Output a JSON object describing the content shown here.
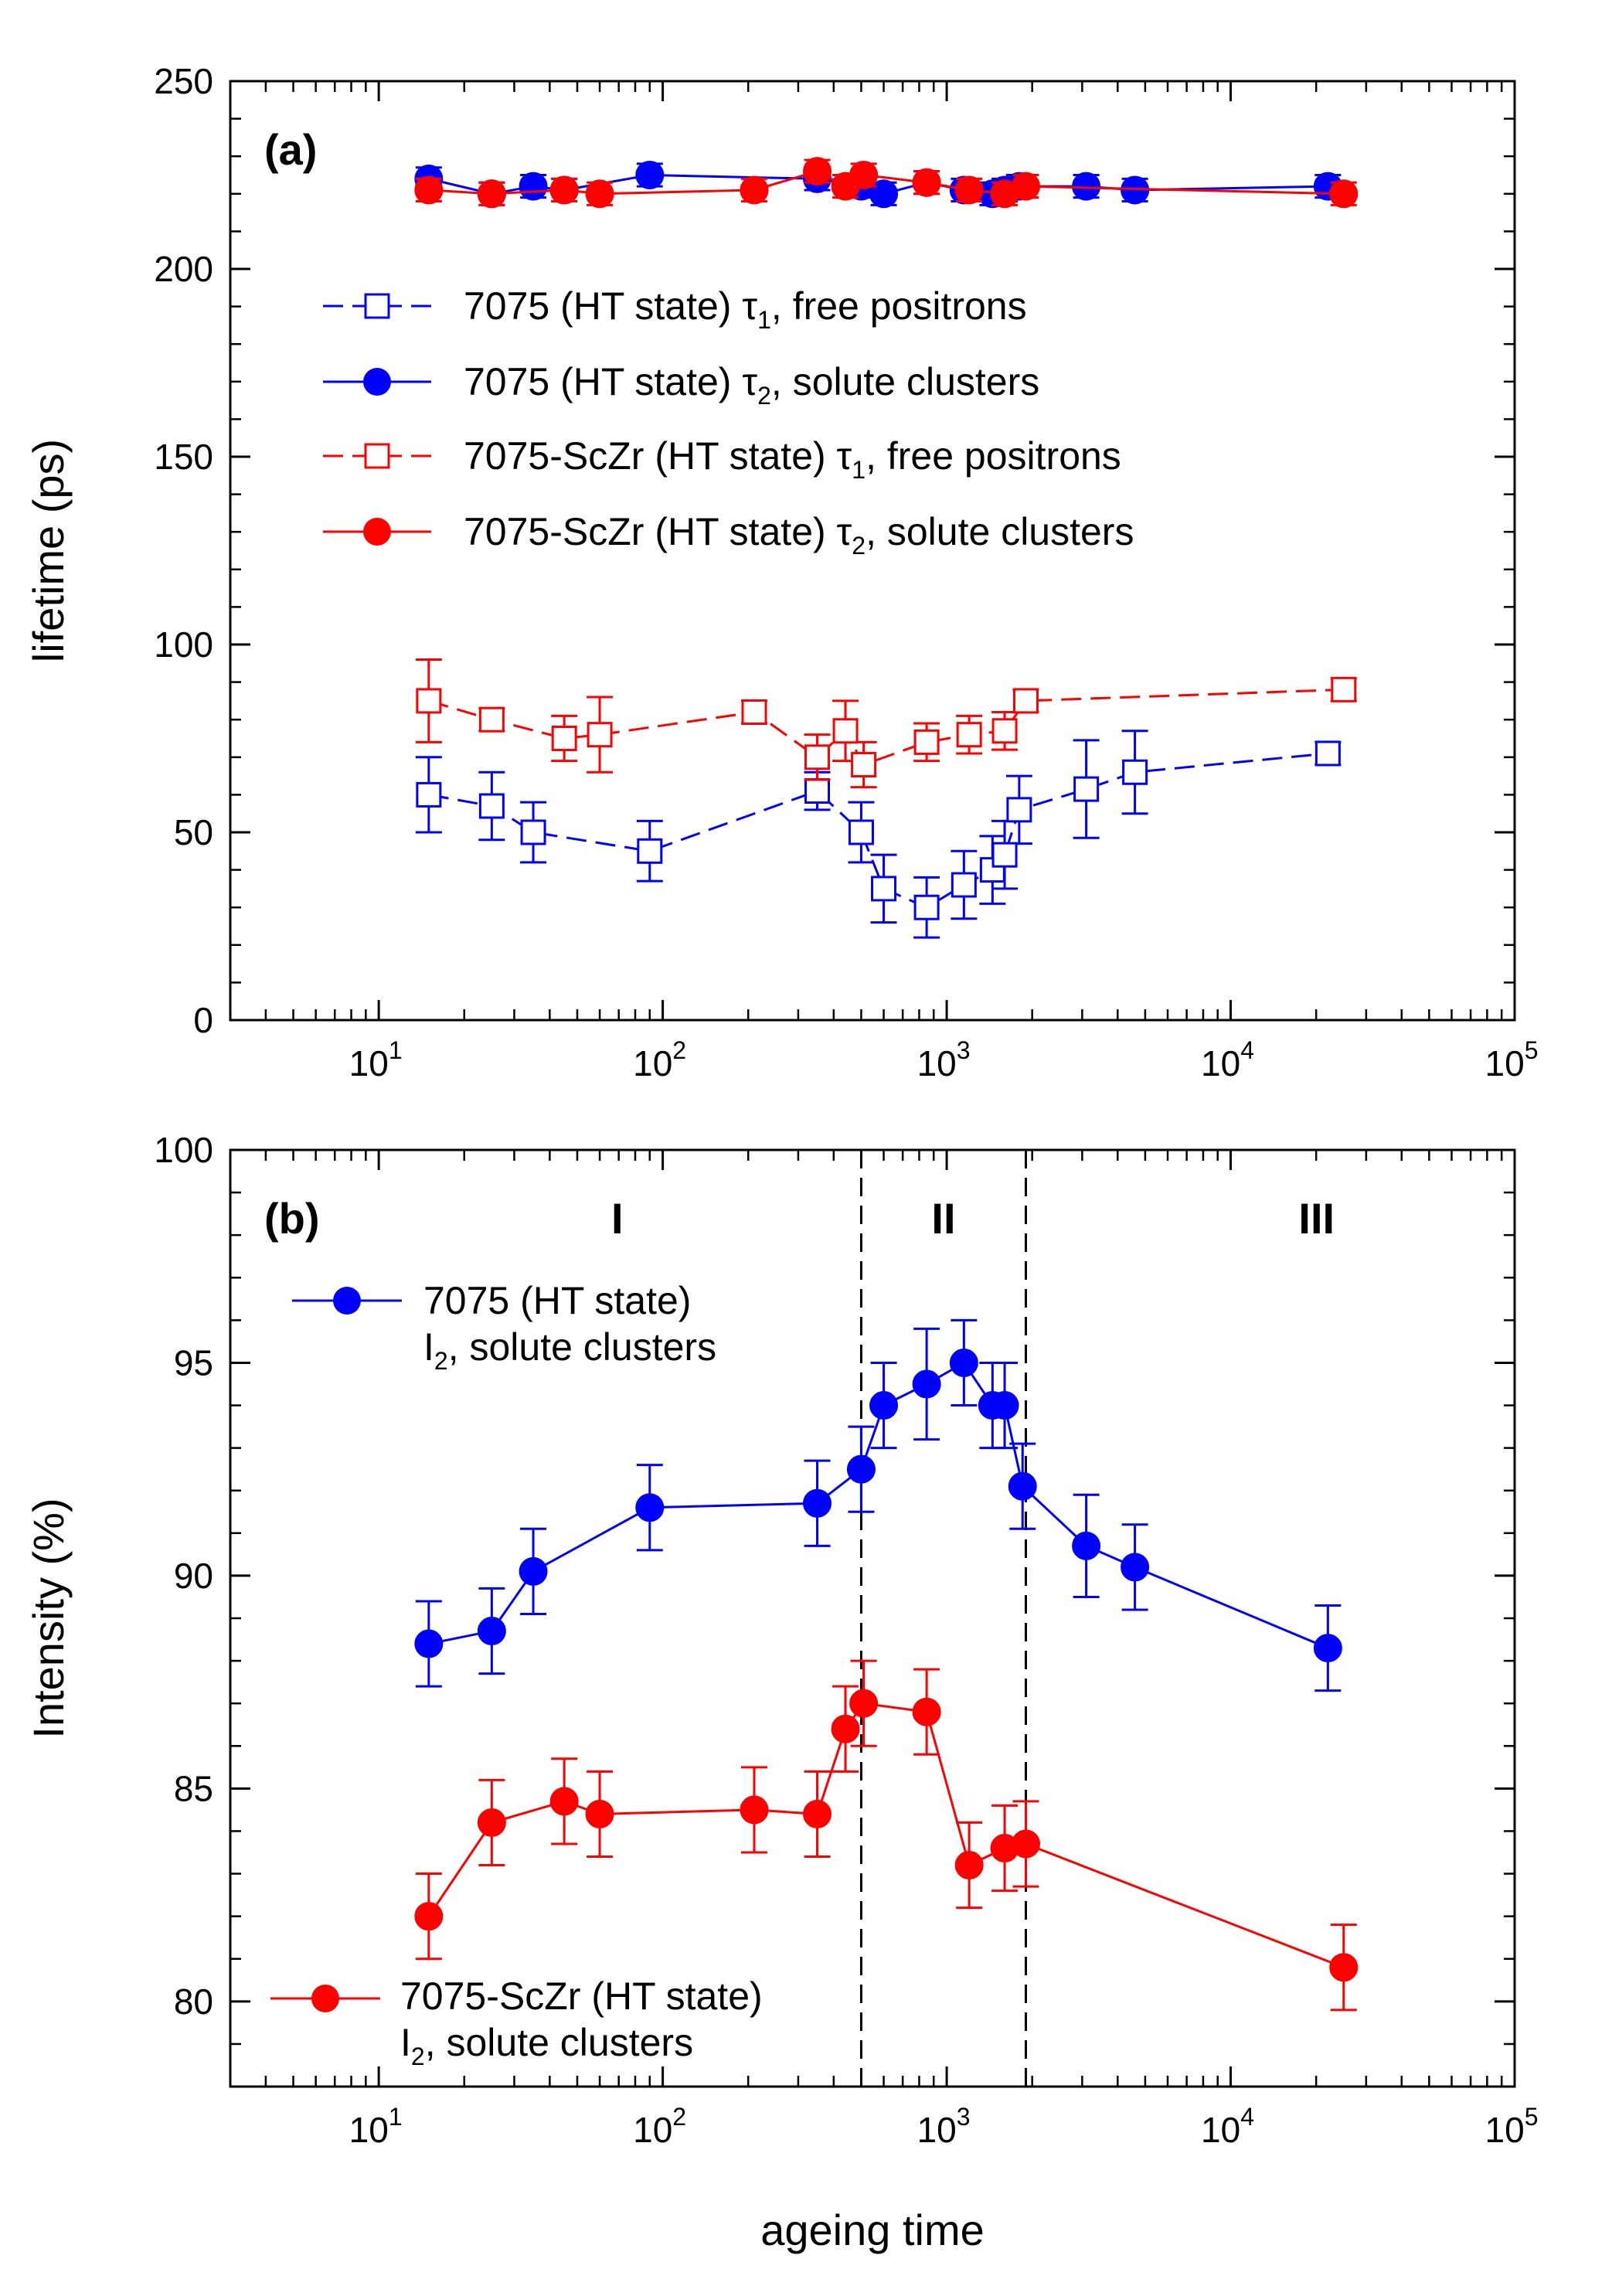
{
  "figure": {
    "xlabel": "ageing time",
    "xtick_labels": [
      "10",
      "10",
      "10",
      "10",
      "10"
    ],
    "xtick_exponents": [
      "1",
      "2",
      "3",
      "4",
      "5"
    ]
  },
  "chart_data": [
    {
      "type": "line",
      "panel_label": "(a)",
      "ylabel": "lifetime (ps)",
      "xscale": "log",
      "xlim": [
        3,
        100000
      ],
      "ylim": [
        0,
        250
      ],
      "yticks": [
        "0",
        "50",
        "100",
        "150",
        "200",
        "250"
      ],
      "legend_placement": "upper-middle",
      "series": [
        {
          "name": "7075 (HT state) τ1, free positrons",
          "name_parts": [
            "7075 (HT state) τ",
            "1",
            ", free positrons"
          ],
          "color": "#0000ff",
          "marker": "open-square",
          "linestyle": "dashed",
          "x": [
            15,
            25,
            35,
            90,
            350,
            500,
            600,
            850,
            1150,
            1450,
            1600,
            1800,
            3100,
            4600,
            22000
          ],
          "y": [
            60,
            57,
            50,
            45,
            61,
            50,
            35,
            30,
            36,
            40,
            44,
            56,
            61.5,
            66,
            71
          ],
          "err": [
            10,
            9,
            8,
            8,
            5,
            8,
            9,
            8,
            9,
            9,
            9,
            9,
            13,
            11,
            3
          ]
        },
        {
          "name": "7075 (HT state) τ2, solute clusters",
          "name_parts": [
            "7075 (HT state) τ",
            "2",
            ", solute clusters"
          ],
          "color": "#0000ff",
          "marker": "filled-circle",
          "linestyle": "solid",
          "x": [
            15,
            25,
            35,
            45,
            90,
            350,
            500,
            600,
            850,
            1150,
            1450,
            1600,
            1800,
            3100,
            4600,
            22000
          ],
          "y": [
            224,
            220,
            222,
            221,
            225,
            224,
            222,
            220,
            223,
            221,
            220,
            221,
            222,
            222,
            221,
            222
          ],
          "err": [
            3,
            3,
            3,
            3,
            3,
            3,
            3,
            3,
            3,
            3,
            3,
            3,
            3,
            3,
            3,
            3
          ]
        },
        {
          "name": "7075-ScZr (HT state) τ1, free positrons",
          "name_parts": [
            "7075-ScZr (HT state) τ",
            "1",
            ", free positrons"
          ],
          "color": "#ff0000",
          "marker": "open-square",
          "linestyle": "dashed",
          "x": [
            15,
            25,
            45,
            60,
            210,
            350,
            440,
            510,
            850,
            1200,
            1600,
            1900,
            25000
          ],
          "y": [
            85,
            80,
            75,
            76,
            82,
            70,
            77,
            68,
            74,
            76,
            77,
            85,
            88
          ],
          "err": [
            11,
            3,
            6,
            10,
            3,
            6,
            8,
            6,
            5,
            5,
            5,
            3,
            3
          ]
        },
        {
          "name": "7075-ScZr (HT state) τ2, solute clusters",
          "name_parts": [
            "7075-ScZr (HT state) τ",
            "2",
            ", solute clusters"
          ],
          "color": "#ff0000",
          "marker": "filled-circle",
          "linestyle": "solid",
          "x": [
            15,
            25,
            45,
            60,
            210,
            350,
            440,
            510,
            850,
            1200,
            1600,
            1900,
            25000
          ],
          "y": [
            221,
            220,
            221,
            220,
            221,
            226,
            222,
            225,
            223,
            221,
            220,
            222,
            220
          ],
          "err": [
            3,
            3,
            3,
            3,
            3,
            3,
            3,
            3,
            3,
            3,
            3,
            3,
            3
          ]
        }
      ]
    },
    {
      "type": "line",
      "panel_label": "(b)",
      "ylabel": "Intensity (%)",
      "xscale": "log",
      "xlim": [
        3,
        100000
      ],
      "ylim": [
        78,
        100
      ],
      "yticks": [
        "80",
        "85",
        "90",
        "95",
        "100"
      ],
      "regions": [
        "I",
        "II",
        "III"
      ],
      "region_boundaries": [
        500,
        1900
      ],
      "series": [
        {
          "name": "7075 (HT state) I2, solute clusters",
          "legend_line1": "7075 (HT state)",
          "legend_line2_parts": [
            "I",
            "2",
            ", solute clusters"
          ],
          "legend_placement": "upper-left",
          "color": "#0000ff",
          "marker": "filled-circle",
          "linestyle": "solid",
          "x": [
            15,
            25,
            35,
            90,
            350,
            500,
            600,
            850,
            1150,
            1450,
            1600,
            1850,
            3100,
            4600,
            22000
          ],
          "y": [
            88.4,
            88.7,
            90.1,
            91.6,
            91.7,
            92.5,
            94.0,
            94.5,
            95.0,
            94.0,
            94.0,
            92.1,
            90.7,
            90.2,
            88.3
          ],
          "err": [
            1.0,
            1.0,
            1.0,
            1.0,
            1.0,
            1.0,
            1.0,
            1.3,
            1.0,
            1.0,
            1.0,
            1.0,
            1.2,
            1.0,
            1.0
          ]
        },
        {
          "name": "7075-ScZr (HT state) I2, solute clusters",
          "legend_line1": "7075-ScZr (HT state)",
          "legend_line2_parts": [
            "I",
            "2",
            ", solute clusters"
          ],
          "legend_placement": "lower-left",
          "color": "#ff0000",
          "marker": "filled-circle",
          "linestyle": "solid",
          "x": [
            15,
            25,
            45,
            60,
            210,
            350,
            440,
            510,
            850,
            1200,
            1600,
            1900,
            25000
          ],
          "y": [
            82.0,
            84.2,
            84.7,
            84.4,
            84.5,
            84.4,
            86.4,
            87.0,
            86.8,
            83.2,
            83.6,
            83.7,
            80.8
          ],
          "err": [
            1.0,
            1.0,
            1.0,
            1.0,
            1.0,
            1.0,
            1.0,
            1.0,
            1.0,
            1.0,
            1.0,
            1.0,
            1.0
          ]
        }
      ]
    }
  ]
}
